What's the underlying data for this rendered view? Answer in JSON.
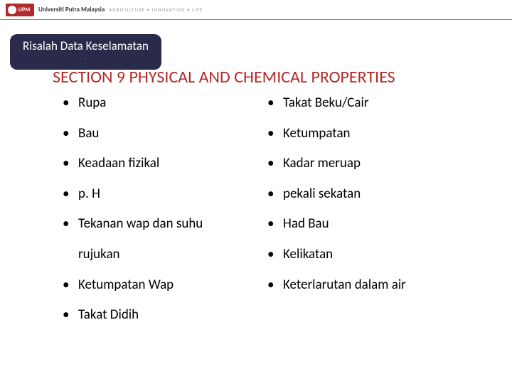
{
  "header": {
    "logo_text": "UPM",
    "university": "Universiti Putra Malaysia",
    "tagline": "AGRICULTURE • INNOVATION • LIFE"
  },
  "title_chip": {
    "main": "Risalah Data Keselamatan",
    "sub": "."
  },
  "section_title": "SECTION 9 PHYSICAL AND CHEMICAL PROPERTIES",
  "left_items": [
    {
      "text": "Rupa",
      "bullet": true
    },
    {
      "text": "Bau",
      "bullet": true
    },
    {
      "text": "Keadaan fizikal",
      "bullet": true
    },
    {
      "text": "p. H",
      "bullet": true
    },
    {
      "text": "Tekanan wap dan suhu",
      "bullet": true
    },
    {
      "text": "rujukan",
      "bullet": false
    },
    {
      "text": "Ketumpatan Wap",
      "bullet": true
    },
    {
      "text": "Takat Didih",
      "bullet": true
    }
  ],
  "right_items": [
    {
      "text": "Takat Beku/Cair",
      "bullet": true
    },
    {
      "text": "Ketumpatan",
      "bullet": true
    },
    {
      "text": "Kadar meruap",
      "bullet": true
    },
    {
      "text": "pekali sekatan",
      "bullet": true
    },
    {
      "text": "Had Bau",
      "bullet": true
    },
    {
      "text": "Kelikatan",
      "bullet": true
    },
    {
      "text": "Keterlarutan dalam air",
      "bullet": true
    }
  ],
  "colors": {
    "accent_red": "#b02a2a",
    "chip_bg": "#2a2a4a",
    "text": "#000000",
    "bg": "#ffffff"
  },
  "fonts": {
    "section_title_size": 24,
    "item_size": 19,
    "chip_size": 17
  }
}
